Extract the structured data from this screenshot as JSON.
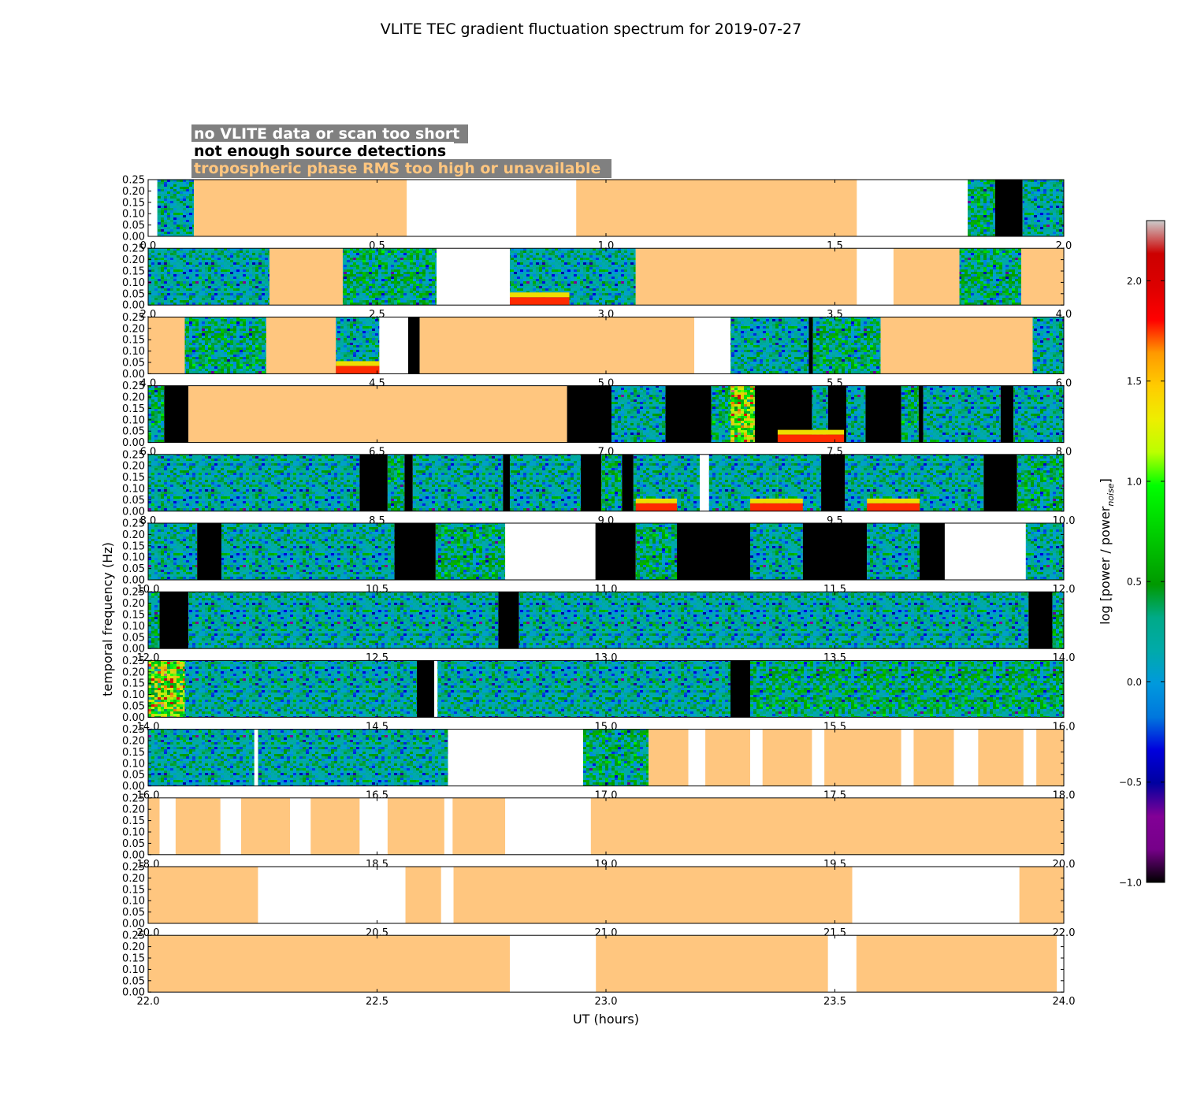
{
  "chart_data": {
    "type": "heatmap",
    "title": "VLITE TEC gradient fluctuation spectrum for 2019-07-27",
    "xlabel": "UT (hours)",
    "ylabel": "temporal frequency (Hz)",
    "ylim": [
      0,
      0.25
    ],
    "ytick_labels": [
      "0.00",
      "0.05",
      "0.10",
      "0.15",
      "0.20",
      "0.25"
    ],
    "colorbar": {
      "label": "log [power / power",
      "label_subscript": "noise",
      "label_suffix": "]",
      "range": [
        -1.0,
        2.3
      ],
      "tick_labels": [
        "−1.0",
        "−0.5",
        "0.0",
        "0.5",
        "1.0",
        "1.5",
        "2.0"
      ],
      "tick_values": [
        -1.0,
        -0.5,
        0.0,
        0.5,
        1.0,
        1.5,
        2.0
      ],
      "colormap": "nipy_spectral"
    },
    "legend": {
      "placement": "top-left",
      "entries": [
        {
          "label": "no VLITE data or scan too short",
          "color": "#ffffff"
        },
        {
          "label": "not enough source detections",
          "color": "#000000"
        },
        {
          "label": "tropospheric phase RMS too high or unavailable",
          "color": "#ffc67f"
        }
      ]
    },
    "colors": {
      "no_data": "#ffffff",
      "no_detections": "#000000",
      "tropo_rms": "#ffc67f"
    },
    "category_codes": {
      "D": "spectrum data",
      "W": "no VLITE data or scan too short",
      "B": "not enough source detections",
      "T": "tropospheric phase RMS too high or unavailable"
    },
    "panels": [
      {
        "range": [
          0,
          2
        ],
        "xtick_labels": [
          "0.0",
          "0.5",
          "1.0",
          "1.5",
          "2.0"
        ],
        "segments": [
          [
            0.0,
            0.02,
            "W"
          ],
          [
            0.02,
            0.1,
            "D"
          ],
          [
            0.1,
            0.565,
            "T"
          ],
          [
            0.565,
            0.935,
            "W"
          ],
          [
            0.935,
            1.548,
            "T"
          ],
          [
            1.548,
            1.79,
            "W"
          ],
          [
            1.79,
            1.85,
            "D"
          ],
          [
            1.85,
            1.91,
            "B"
          ],
          [
            1.91,
            2.0,
            "D"
          ]
        ]
      },
      {
        "range": [
          2,
          4
        ],
        "xtick_labels": [
          "2.0",
          "2.5",
          "3.0",
          "3.5",
          "4.0"
        ],
        "segments": [
          [
            2.0,
            2.265,
            "D"
          ],
          [
            2.265,
            2.425,
            "T"
          ],
          [
            2.425,
            2.63,
            "D"
          ],
          [
            2.63,
            2.79,
            "W"
          ],
          [
            2.79,
            3.065,
            "D"
          ],
          [
            3.065,
            3.548,
            "T"
          ],
          [
            3.548,
            3.628,
            "W"
          ],
          [
            3.628,
            3.772,
            "T"
          ],
          [
            3.772,
            3.907,
            "D"
          ],
          [
            3.907,
            4.0,
            "T"
          ]
        ]
      },
      {
        "range": [
          4,
          6
        ],
        "xtick_labels": [
          "4.0",
          "4.5",
          "5.0",
          "5.5",
          "6.0"
        ],
        "segments": [
          [
            4.0,
            4.08,
            "T"
          ],
          [
            4.08,
            4.258,
            "D"
          ],
          [
            4.258,
            4.41,
            "T"
          ],
          [
            4.41,
            4.505,
            "D"
          ],
          [
            4.505,
            4.568,
            "W"
          ],
          [
            4.568,
            4.593,
            "B"
          ],
          [
            4.593,
            5.193,
            "T"
          ],
          [
            5.193,
            5.272,
            "W"
          ],
          [
            5.272,
            5.443,
            "D"
          ],
          [
            5.443,
            5.452,
            "B"
          ],
          [
            5.452,
            5.6,
            "D"
          ],
          [
            5.6,
            5.932,
            "T"
          ],
          [
            5.932,
            6.0,
            "D"
          ]
        ]
      },
      {
        "range": [
          6,
          8
        ],
        "xtick_labels": [
          "6.0",
          "6.5",
          "7.0",
          "7.5",
          "8.0"
        ],
        "segments": [
          [
            6.0,
            6.035,
            "D"
          ],
          [
            6.035,
            6.088,
            "B"
          ],
          [
            6.088,
            6.915,
            "T"
          ],
          [
            6.915,
            7.012,
            "B"
          ],
          [
            7.012,
            7.13,
            "D"
          ],
          [
            7.13,
            7.23,
            "B"
          ],
          [
            7.23,
            7.325,
            "D"
          ],
          [
            7.325,
            7.45,
            "B"
          ],
          [
            7.45,
            7.485,
            "D"
          ],
          [
            7.485,
            7.525,
            "B"
          ],
          [
            7.525,
            7.567,
            "D"
          ],
          [
            7.567,
            7.645,
            "B"
          ],
          [
            7.645,
            7.683,
            "D"
          ],
          [
            7.683,
            7.693,
            "B"
          ],
          [
            7.693,
            7.862,
            "D"
          ],
          [
            7.862,
            7.89,
            "B"
          ],
          [
            7.89,
            8.0,
            "D"
          ]
        ]
      },
      {
        "range": [
          8,
          10
        ],
        "xtick_labels": [
          "8.0",
          "8.5",
          "9.0",
          "9.5",
          "10.0"
        ],
        "segments": [
          [
            8.0,
            8.462,
            "D"
          ],
          [
            8.462,
            8.523,
            "B"
          ],
          [
            8.523,
            8.56,
            "D"
          ],
          [
            8.56,
            8.578,
            "B"
          ],
          [
            8.578,
            8.775,
            "D"
          ],
          [
            8.775,
            8.79,
            "B"
          ],
          [
            8.79,
            8.945,
            "D"
          ],
          [
            8.945,
            8.99,
            "B"
          ],
          [
            8.99,
            9.035,
            "D"
          ],
          [
            9.035,
            9.06,
            "B"
          ],
          [
            9.06,
            9.205,
            "D"
          ],
          [
            9.205,
            9.225,
            "W"
          ],
          [
            9.225,
            9.375,
            "D"
          ],
          [
            9.375,
            9.47,
            "D"
          ],
          [
            9.47,
            9.522,
            "B"
          ],
          [
            9.522,
            9.825,
            "D"
          ],
          [
            9.825,
            9.898,
            "B"
          ],
          [
            9.898,
            10.0,
            "D"
          ]
        ]
      },
      {
        "range": [
          10,
          12
        ],
        "xtick_labels": [
          "10.0",
          "10.5",
          "11.0",
          "11.5",
          "12.0"
        ],
        "segments": [
          [
            10.0,
            10.107,
            "D"
          ],
          [
            10.107,
            10.16,
            "B"
          ],
          [
            10.16,
            10.538,
            "D"
          ],
          [
            10.538,
            10.628,
            "B"
          ],
          [
            10.628,
            10.78,
            "D"
          ],
          [
            10.78,
            10.977,
            "W"
          ],
          [
            10.977,
            11.065,
            "B"
          ],
          [
            11.065,
            11.155,
            "D"
          ],
          [
            11.155,
            11.315,
            "B"
          ],
          [
            11.315,
            11.43,
            "D"
          ],
          [
            11.43,
            11.57,
            "B"
          ],
          [
            11.57,
            11.685,
            "D"
          ],
          [
            11.685,
            11.74,
            "B"
          ],
          [
            11.74,
            11.917,
            "W"
          ],
          [
            11.917,
            12.0,
            "D"
          ]
        ]
      },
      {
        "range": [
          12,
          14
        ],
        "xtick_labels": [
          "12.0",
          "12.5",
          "13.0",
          "13.5",
          "14.0"
        ],
        "segments": [
          [
            12.0,
            12.025,
            "D"
          ],
          [
            12.025,
            12.088,
            "B"
          ],
          [
            12.088,
            12.765,
            "D"
          ],
          [
            12.765,
            12.81,
            "B"
          ],
          [
            12.81,
            13.923,
            "D"
          ],
          [
            13.923,
            13.975,
            "B"
          ],
          [
            13.975,
            14.0,
            "D"
          ]
        ]
      },
      {
        "range": [
          14,
          16
        ],
        "xtick_labels": [
          "14.0",
          "14.5",
          "15.0",
          "15.5",
          "16.0"
        ],
        "segments": [
          [
            14.0,
            14.587,
            "D"
          ],
          [
            14.587,
            14.625,
            "B"
          ],
          [
            14.625,
            14.632,
            "W"
          ],
          [
            14.632,
            15.272,
            "D"
          ],
          [
            15.272,
            15.315,
            "B"
          ],
          [
            15.315,
            16.0,
            "D"
          ]
        ]
      },
      {
        "range": [
          16,
          18
        ],
        "xtick_labels": [
          "16.0",
          "16.5",
          "17.0",
          "17.5",
          "18.0"
        ],
        "segments": [
          [
            16.0,
            16.232,
            "D"
          ],
          [
            16.232,
            16.24,
            "W"
          ],
          [
            16.24,
            16.655,
            "D"
          ],
          [
            16.655,
            16.95,
            "W"
          ],
          [
            16.95,
            17.093,
            "D"
          ],
          [
            17.093,
            17.18,
            "T"
          ],
          [
            17.18,
            17.217,
            "W"
          ],
          [
            17.217,
            17.315,
            "T"
          ],
          [
            17.315,
            17.342,
            "W"
          ],
          [
            17.342,
            17.45,
            "T"
          ],
          [
            17.45,
            17.477,
            "W"
          ],
          [
            17.477,
            17.645,
            "T"
          ],
          [
            17.645,
            17.672,
            "W"
          ],
          [
            17.672,
            17.76,
            "T"
          ],
          [
            17.76,
            17.813,
            "W"
          ],
          [
            17.813,
            17.912,
            "T"
          ],
          [
            17.912,
            17.94,
            "W"
          ],
          [
            17.94,
            18.0,
            "T"
          ]
        ]
      },
      {
        "range": [
          18,
          20
        ],
        "xtick_labels": [
          "18.0",
          "18.5",
          "19.0",
          "19.5",
          "20.0"
        ],
        "segments": [
          [
            18.0,
            18.025,
            "T"
          ],
          [
            18.025,
            18.06,
            "W"
          ],
          [
            18.06,
            18.158,
            "T"
          ],
          [
            18.158,
            18.203,
            "W"
          ],
          [
            18.203,
            18.31,
            "T"
          ],
          [
            18.31,
            18.355,
            "W"
          ],
          [
            18.355,
            18.462,
            "T"
          ],
          [
            18.462,
            18.523,
            "W"
          ],
          [
            18.523,
            18.647,
            "T"
          ],
          [
            18.647,
            18.665,
            "W"
          ],
          [
            18.665,
            18.78,
            "T"
          ],
          [
            18.78,
            18.967,
            "W"
          ],
          [
            18.967,
            20.0,
            "T"
          ]
        ]
      },
      {
        "range": [
          20,
          22
        ],
        "xtick_labels": [
          "20.0",
          "20.5",
          "21.0",
          "21.5",
          "22.0"
        ],
        "segments": [
          [
            20.0,
            20.24,
            "T"
          ],
          [
            20.24,
            20.562,
            "W"
          ],
          [
            20.562,
            20.64,
            "T"
          ],
          [
            20.64,
            20.667,
            "W"
          ],
          [
            20.667,
            21.538,
            "T"
          ],
          [
            21.538,
            21.903,
            "W"
          ],
          [
            21.903,
            22.0,
            "T"
          ]
        ]
      },
      {
        "range": [
          22,
          24
        ],
        "xtick_labels": [
          "22.0",
          "22.5",
          "23.0",
          "23.5",
          "24.0"
        ],
        "segments": [
          [
            22.0,
            22.79,
            "T"
          ],
          [
            22.79,
            22.978,
            "W"
          ],
          [
            22.978,
            23.485,
            "T"
          ],
          [
            23.485,
            23.547,
            "W"
          ],
          [
            23.547,
            23.985,
            "T"
          ],
          [
            23.985,
            24.0,
            "W"
          ]
        ]
      }
    ],
    "highlights": [
      {
        "range": [
          2.79,
          2.92
        ],
        "kind": "low-frequency excess"
      },
      {
        "range": [
          4.41,
          4.505
        ],
        "kind": "low-frequency excess"
      },
      {
        "range": [
          7.272,
          7.325
        ],
        "kind": "broadband excess"
      },
      {
        "range": [
          7.375,
          7.52
        ],
        "kind": "low-frequency excess"
      },
      {
        "range": [
          9.065,
          9.155
        ],
        "kind": "low-frequency excess"
      },
      {
        "range": [
          9.315,
          9.43
        ],
        "kind": "low-frequency excess"
      },
      {
        "range": [
          9.57,
          9.685
        ],
        "kind": "low-frequency excess"
      },
      {
        "range": [
          14.0,
          14.08
        ],
        "kind": "broadband excess"
      }
    ]
  }
}
